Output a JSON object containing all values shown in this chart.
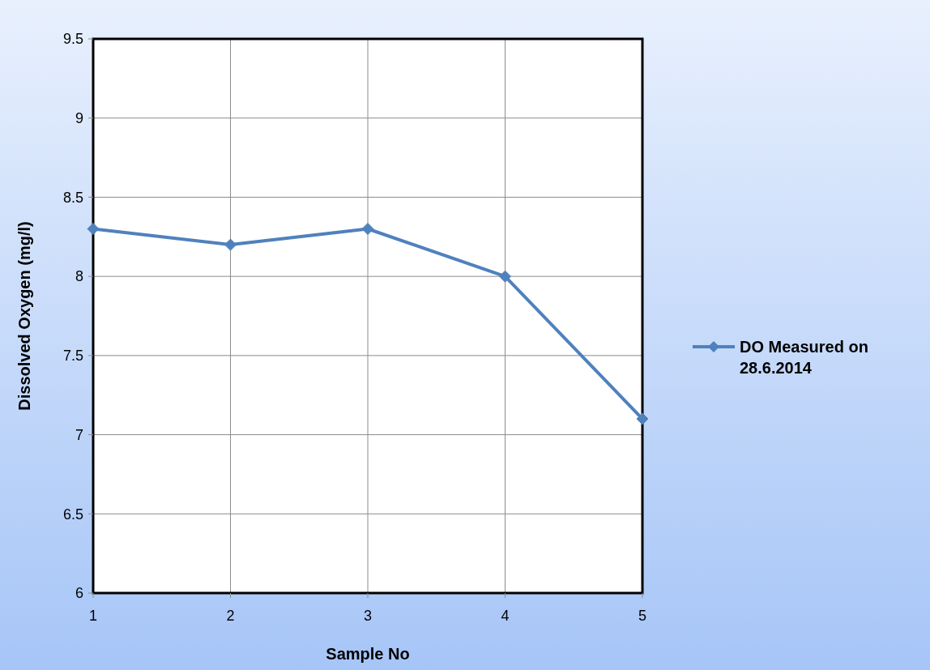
{
  "chart_data": {
    "type": "line",
    "xlabel": "Sample No",
    "ylabel": "Dissolved Oxygen (mg/l)",
    "x": [
      1,
      2,
      3,
      4,
      5
    ],
    "series": [
      {
        "name": "DO Measured on 28.6.2014",
        "color": "#4f81bd",
        "values": [
          8.3,
          8.2,
          8.3,
          8.0,
          7.1
        ]
      }
    ],
    "xlim": [
      1,
      5
    ],
    "xticks": [
      1,
      2,
      3,
      4,
      5
    ],
    "ylim": [
      6,
      9.5
    ],
    "yticks": [
      6,
      6.5,
      7,
      7.5,
      8,
      8.5,
      9,
      9.5
    ],
    "grid": true,
    "legend": "right",
    "marker": "diamond",
    "line_style": "solid"
  }
}
